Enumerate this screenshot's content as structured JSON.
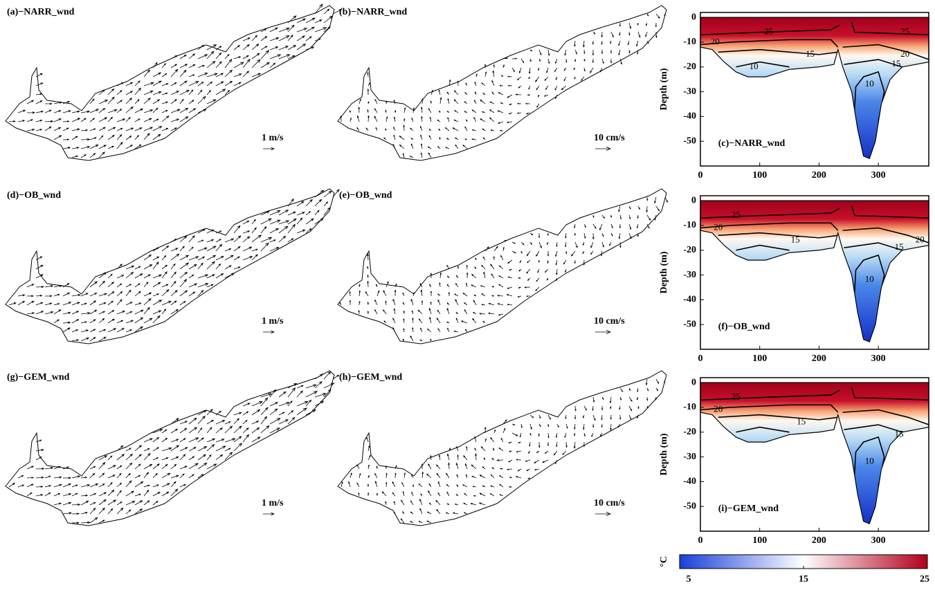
{
  "chart_data": [
    {
      "type": "vector-map",
      "title": "(a)−NARR_wnd",
      "scale_label": "1 m/s"
    },
    {
      "type": "vector-map",
      "title": "(b)−NARR_wnd",
      "scale_label": "10 cm/s"
    },
    {
      "type": "contour",
      "title": "(c)−NARR_wnd",
      "ylabel": "Depth (m)",
      "xlim": [
        0,
        385
      ],
      "ylim": [
        -60,
        2
      ],
      "xticks": [
        0,
        100,
        200,
        300
      ],
      "yticks": [
        0,
        -10,
        -20,
        -30,
        -40,
        -50
      ],
      "contour_labels": [
        25,
        25,
        20,
        20,
        15,
        15,
        10,
        10
      ]
    },
    {
      "type": "vector-map",
      "title": "(d)−OB_wnd",
      "scale_label": "1 m/s"
    },
    {
      "type": "vector-map",
      "title": "(e)−OB_wnd",
      "scale_label": "10 cm/s"
    },
    {
      "type": "contour",
      "title": "(f)−OB_wnd",
      "ylabel": "Depth (m)",
      "xlim": [
        0,
        385
      ],
      "ylim": [
        -60,
        2
      ],
      "xticks": [
        0,
        100,
        200,
        300
      ],
      "yticks": [
        0,
        -10,
        -20,
        -30,
        -40,
        -50
      ],
      "contour_labels": [
        25,
        20,
        15,
        15,
        20,
        10
      ]
    },
    {
      "type": "vector-map",
      "title": "(g)−GEM_wnd",
      "scale_label": "1 m/s"
    },
    {
      "type": "vector-map",
      "title": "(h)−GEM_wnd",
      "scale_label": "10 cm/s"
    },
    {
      "type": "contour",
      "title": "(i)−GEM_wnd",
      "ylabel": "Depth (m)",
      "xlim": [
        0,
        385
      ],
      "ylim": [
        -60,
        2
      ],
      "xticks": [
        0,
        100,
        200,
        300
      ],
      "yticks": [
        0,
        -10,
        -20,
        -30,
        -40,
        -50
      ],
      "contour_labels": [
        25,
        20,
        15,
        15,
        10
      ]
    },
    {
      "type": "colorbar",
      "label": "°C",
      "lim": [
        5,
        25
      ],
      "ticks": [
        5,
        15,
        25
      ],
      "colors": [
        "#1a3fd8",
        "#ffffff",
        "#b0001a"
      ]
    }
  ]
}
